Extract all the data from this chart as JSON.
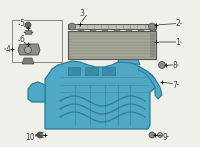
{
  "bg_color": "#f0f0eb",
  "line_color": "#444444",
  "tray_color": "#4fa8c5",
  "tray_edge_color": "#2e7a96",
  "battery_face_color": "#a8a89a",
  "battery_edge_color": "#555550",
  "bar_color": "#c8c8b8",
  "inset_box_color": "#888888",
  "fig_width": 2.0,
  "fig_height": 1.47,
  "dpi": 100,
  "xlim": [
    0,
    200
  ],
  "ylim": [
    0,
    147
  ]
}
